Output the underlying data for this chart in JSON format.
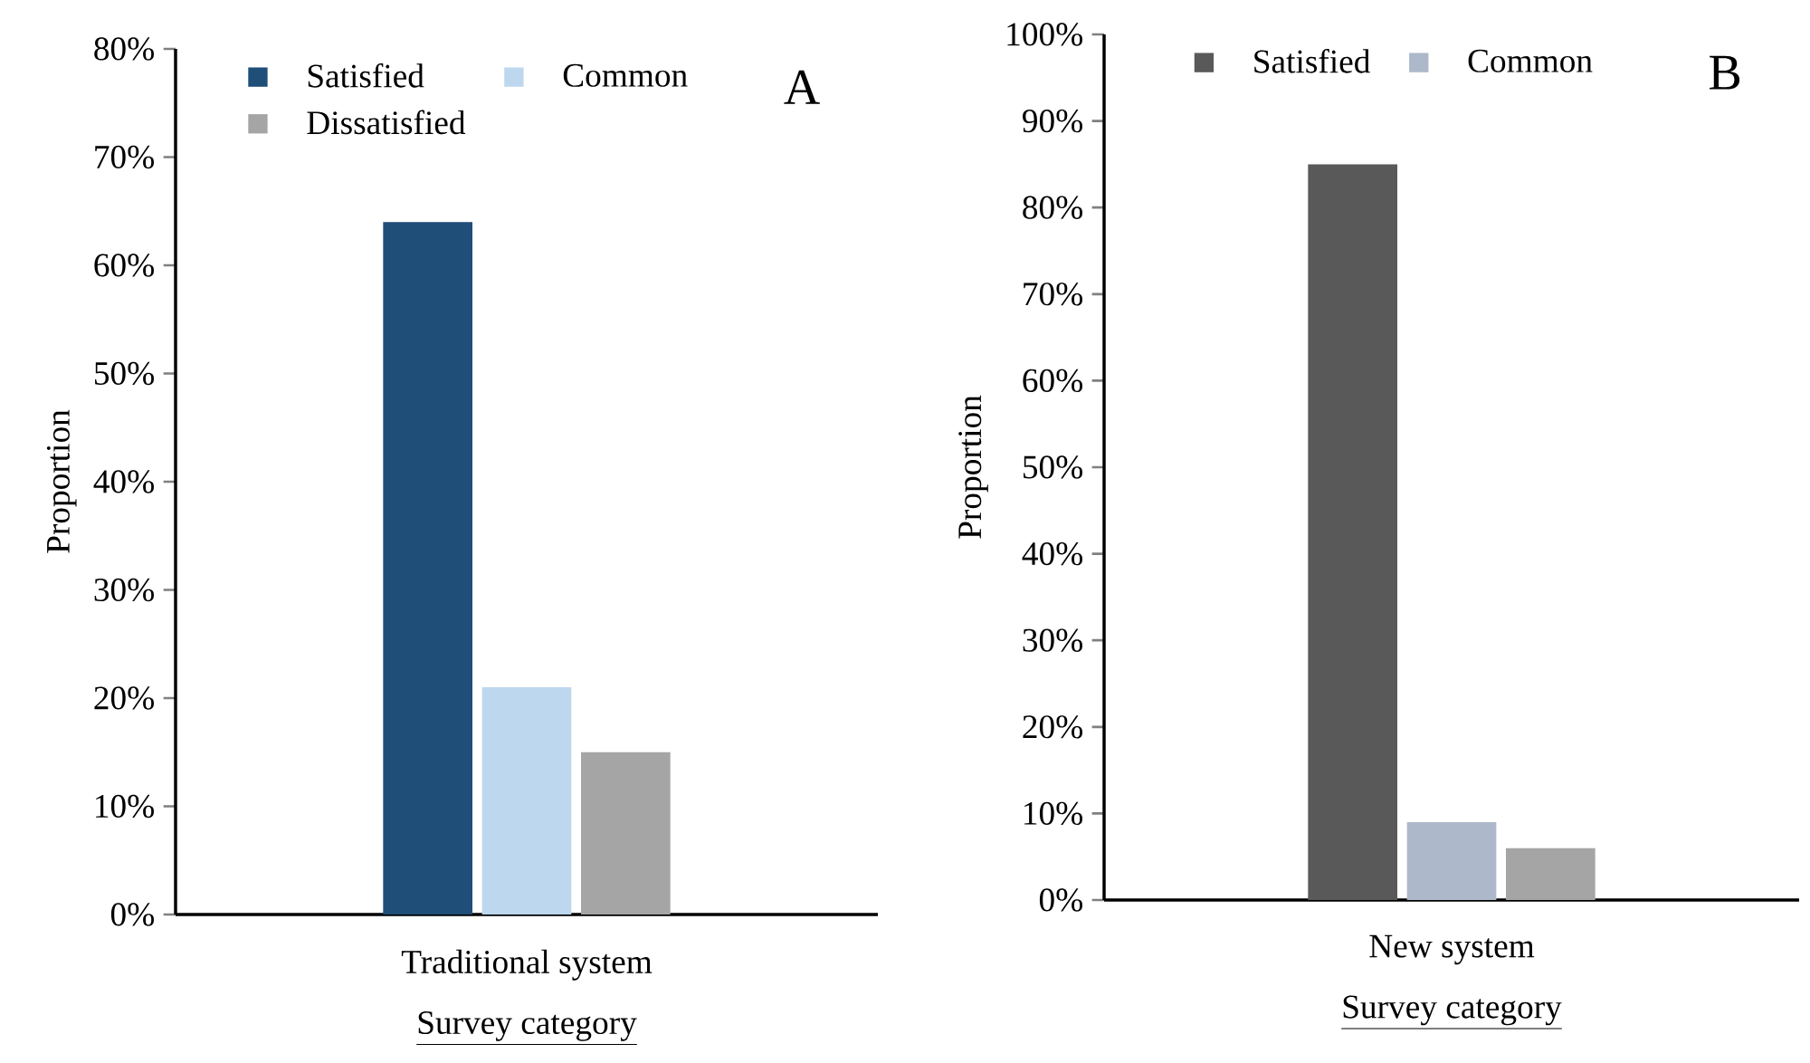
{
  "chart_data": [
    {
      "type": "bar",
      "annotations": [
        "A"
      ],
      "xlabel": "Survey category",
      "ylabel": "Proportion",
      "categories": [
        "Traditional system"
      ],
      "series": [
        {
          "name": "Satisfied",
          "color": "#1f4e79",
          "values": [
            64
          ]
        },
        {
          "name": "Common",
          "color": "#bdd7ee",
          "values": [
            21
          ]
        },
        {
          "name": "Dissatisfied",
          "color": "#a5a5a5",
          "values": [
            15
          ]
        }
      ],
      "ylim": [
        0,
        80
      ],
      "yticks": [
        {
          "value": 0,
          "label": "0%"
        },
        {
          "value": 10,
          "label": "10%"
        },
        {
          "value": 20,
          "label": "20%"
        },
        {
          "value": 30,
          "label": "30%"
        },
        {
          "value": 40,
          "label": "40%"
        },
        {
          "value": 50,
          "label": "50%"
        },
        {
          "value": 60,
          "label": "60%"
        },
        {
          "value": 70,
          "label": "70%"
        },
        {
          "value": 80,
          "label": "80%"
        }
      ],
      "legend": "top"
    },
    {
      "type": "bar",
      "annotations": [
        "B"
      ],
      "xlabel": "Survey category",
      "ylabel": "Proportion",
      "categories": [
        "New system"
      ],
      "series": [
        {
          "name": "Satisfied",
          "color": "#595959",
          "values": [
            85
          ]
        },
        {
          "name": "Common",
          "color": "#adb9ca",
          "values": [
            9
          ]
        },
        {
          "color": "#a5a5a5",
          "values": [
            6
          ]
        }
      ],
      "ylim": [
        0,
        100
      ],
      "yticks": [
        {
          "value": 0,
          "label": "0%"
        },
        {
          "value": 10,
          "label": "10%"
        },
        {
          "value": 20,
          "label": "20%"
        },
        {
          "value": 30,
          "label": "30%"
        },
        {
          "value": 40,
          "label": "40%"
        },
        {
          "value": 50,
          "label": "50%"
        },
        {
          "value": 60,
          "label": "60%"
        },
        {
          "value": 70,
          "label": "70%"
        },
        {
          "value": 80,
          "label": "80%"
        },
        {
          "value": 90,
          "label": "90%"
        },
        {
          "value": 100,
          "label": "100%"
        }
      ],
      "legend": "top"
    }
  ]
}
